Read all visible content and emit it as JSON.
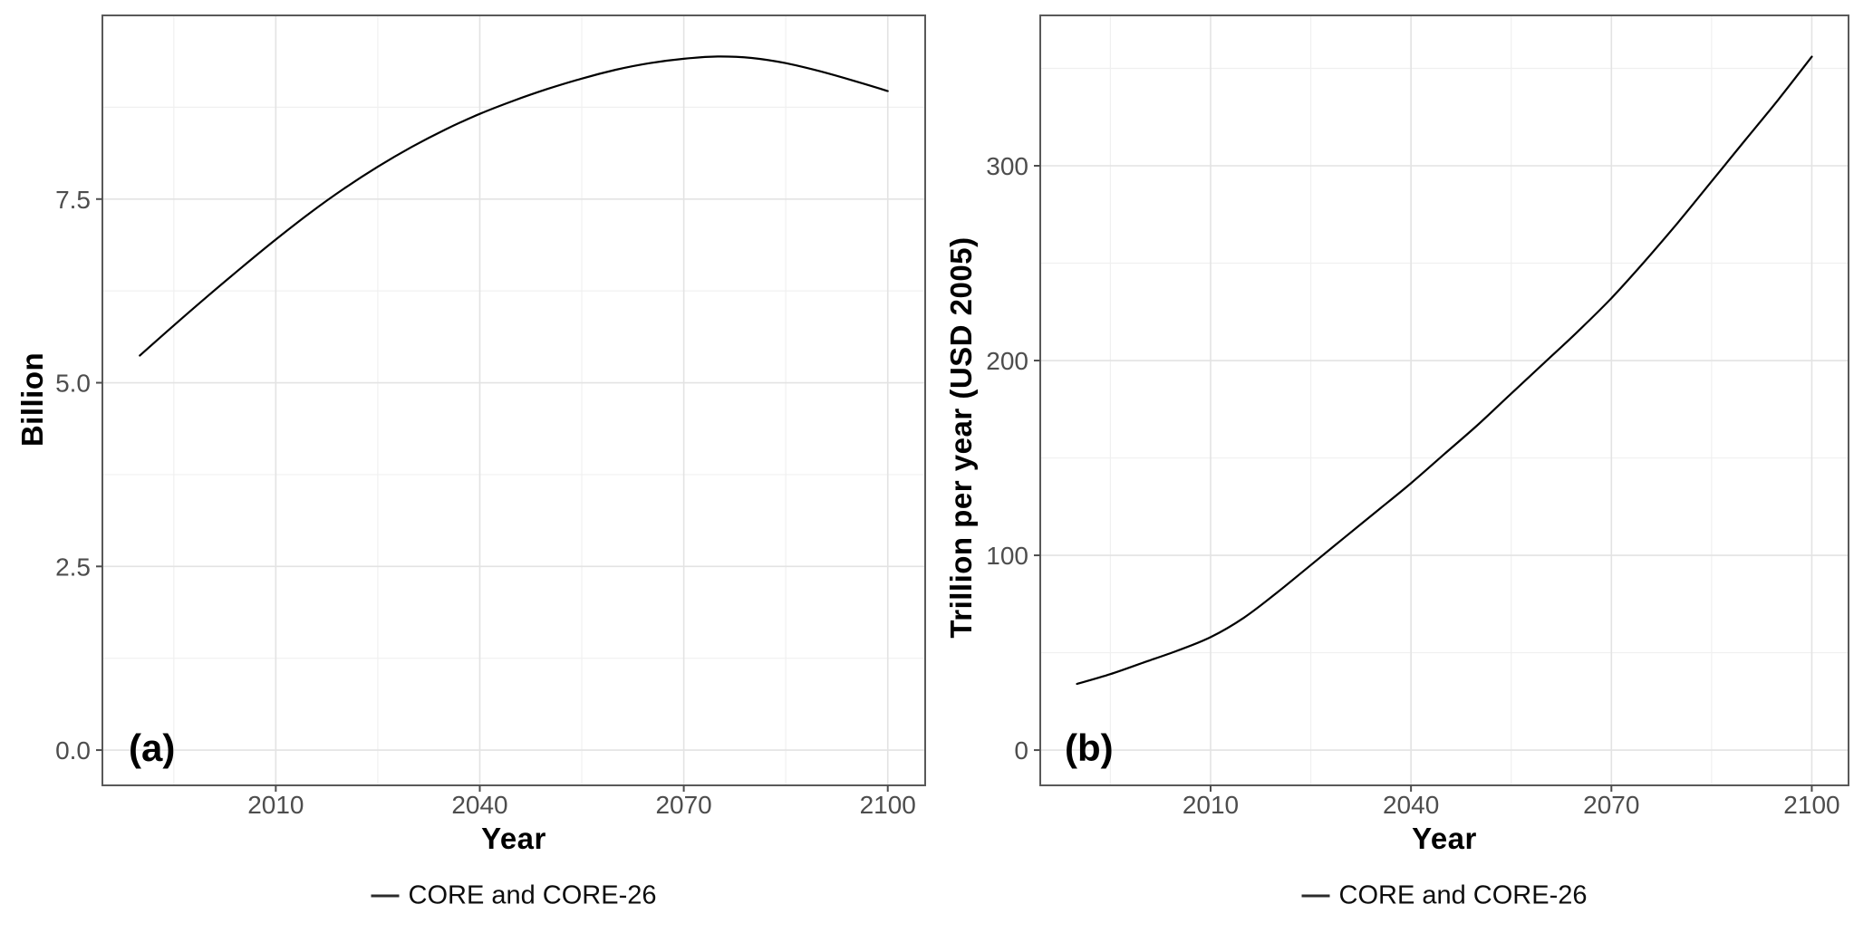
{
  "figure": {
    "background": "#ffffff"
  },
  "colors": {
    "series_line": "#000000",
    "panel_border": "#595959",
    "grid_major": "#e3e3e3",
    "grid_minor": "#f0f0f0",
    "tick_mark": "#4d4d4d",
    "tick_label": "#4d4d4d",
    "axis_title": "#000000",
    "panel_letter": "#000000",
    "legend_text": "#0d0d0d"
  },
  "chart_data": [
    {
      "type": "line",
      "panel_label": "(a)",
      "title": "",
      "xlabel": "Year",
      "ylabel": "Billion",
      "legend_position": "bottom",
      "grid": true,
      "xlim": [
        1984.5,
        2105.5
      ],
      "ylim": [
        -0.48,
        10.0
      ],
      "x_ticks": [
        2010,
        2040,
        2070,
        2100
      ],
      "x_tick_labels": [
        "2010",
        "2040",
        "2070",
        "2100"
      ],
      "y_ticks": [
        0,
        2.5,
        5,
        7.5
      ],
      "y_tick_labels": [
        "0.0",
        "2.5",
        "5.0",
        "7.5"
      ],
      "series": [
        {
          "name": "CORE and CORE-26",
          "color": "#000000",
          "x": [
            1990,
            1995,
            2000,
            2005,
            2010,
            2015,
            2020,
            2025,
            2030,
            2035,
            2040,
            2045,
            2050,
            2055,
            2060,
            2065,
            2070,
            2075,
            2080,
            2085,
            2090,
            2095,
            2100
          ],
          "y": [
            5.37,
            5.78,
            6.18,
            6.57,
            6.95,
            7.31,
            7.64,
            7.94,
            8.21,
            8.45,
            8.66,
            8.84,
            9.0,
            9.14,
            9.26,
            9.35,
            9.41,
            9.44,
            9.42,
            9.35,
            9.24,
            9.11,
            8.97
          ]
        }
      ]
    },
    {
      "type": "line",
      "panel_label": "(b)",
      "title": "",
      "xlabel": "Year",
      "ylabel": "Trillion per year (USD 2005)",
      "legend_position": "bottom",
      "grid": true,
      "xlim": [
        1984.5,
        2105.5
      ],
      "ylim": [
        -18.1,
        377.2
      ],
      "x_ticks": [
        2010,
        2040,
        2070,
        2100
      ],
      "x_tick_labels": [
        "2010",
        "2040",
        "2070",
        "2100"
      ],
      "y_ticks": [
        0,
        100,
        200,
        300
      ],
      "y_tick_labels": [
        "0",
        "100",
        "200",
        "300"
      ],
      "series": [
        {
          "name": "CORE and CORE-26",
          "color": "#000000",
          "x": [
            1990,
            1995,
            2000,
            2005,
            2010,
            2015,
            2020,
            2025,
            2030,
            2035,
            2040,
            2045,
            2050,
            2055,
            2060,
            2065,
            2070,
            2075,
            2080,
            2085,
            2090,
            2095,
            2100
          ],
          "y": [
            34,
            39,
            45,
            51,
            58,
            68,
            81,
            95,
            109,
            123,
            137,
            152,
            167,
            183,
            199,
            215,
            232,
            251,
            271,
            292,
            313,
            334,
            356
          ]
        }
      ]
    }
  ]
}
